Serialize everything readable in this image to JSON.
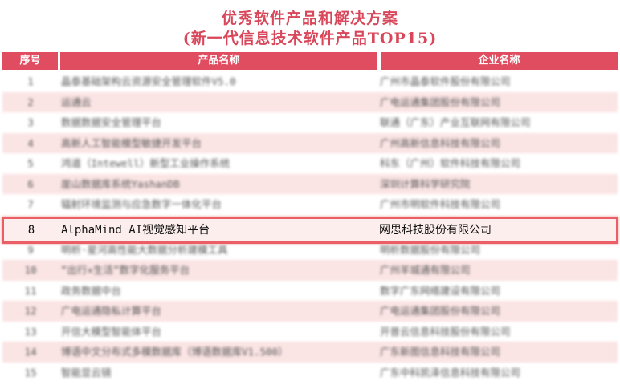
{
  "title": "优秀软件产品和解决方案",
  "subtitle": "(新一代信息技术软件产品TOP15)",
  "columns": [
    "序号",
    "产品名称",
    "企业名称"
  ],
  "colors": {
    "header": "#e14d60",
    "highlight_border": "#ea5f66",
    "row_alt": "#fbe4e4"
  },
  "rows": [
    {
      "no": "1",
      "product": "晶泰基础架构云资源安全管理软件V5.0",
      "company": "广州市晶泰软件股份有限公司"
    },
    {
      "no": "2",
      "product": "运通云",
      "company": "广电运通集团股份有限公司"
    },
    {
      "no": "3",
      "product": "数据数据安全管理平台",
      "company": "联通（广东）产业互联网有限公司"
    },
    {
      "no": "4",
      "product": "高新人工智能模型敏捷开发平台",
      "company": "广州高新信息科技有限公司"
    },
    {
      "no": "5",
      "product": "鸿道（Intewell）新型工业操作系统",
      "company": "科东（广州）软件科技有限公司"
    },
    {
      "no": "6",
      "product": "崖山数据库系统YashanDB",
      "company": "深圳计算科学研究院"
    },
    {
      "no": "7",
      "product": "辐射环境监测与应急数字一体化平台",
      "company": "广州市明软件科技有限公司"
    },
    {
      "no": "8",
      "product": "AlphaMind AI视觉感知平台",
      "company": "网思科技股份有限公司"
    },
    {
      "no": "9",
      "product": "明析·星河高性能大数据分析建模工具",
      "company": "明析数据股份有限公司"
    },
    {
      "no": "10",
      "product": "“出行+生活”数字化服务平台",
      "company": "广州羊城通有限公司"
    },
    {
      "no": "11",
      "product": "政务数据中台",
      "company": "数字广东网络建设有限公司"
    },
    {
      "no": "12",
      "product": "广电运通隐私计算平台",
      "company": "广电运通集团股份有限公司"
    },
    {
      "no": "13",
      "product": "开信大模型智能体平台",
      "company": "开普云信息科技股份有限公司"
    },
    {
      "no": "14",
      "product": "博语中文分布式多模数据库（博语数据库V1.500）",
      "company": "广东新图信息科技有限公司"
    },
    {
      "no": "15",
      "product": "智能显云镜",
      "company": "广东中科凯泽信息科技有限公司"
    }
  ]
}
